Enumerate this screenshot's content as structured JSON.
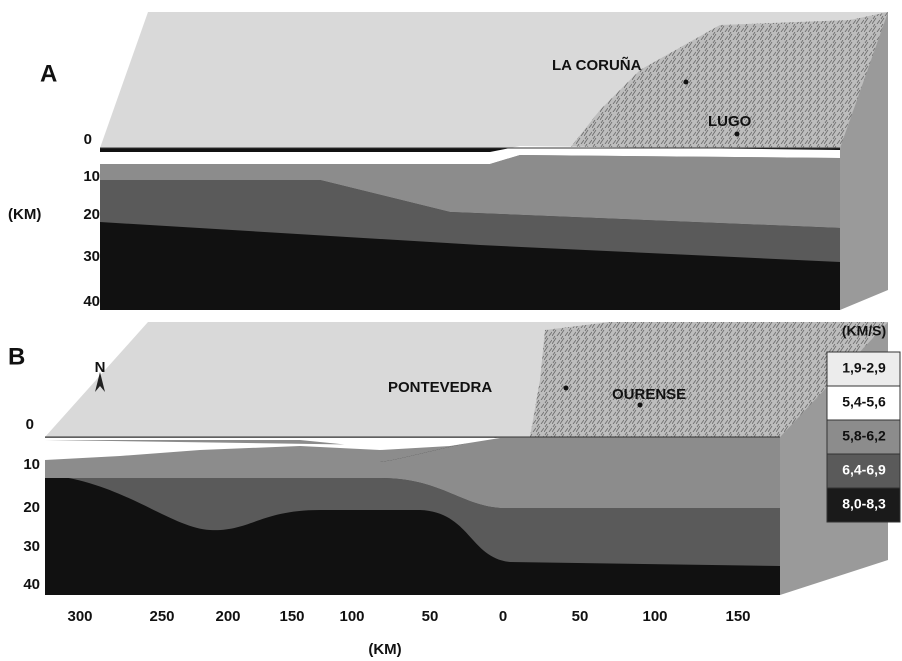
{
  "panels": [
    {
      "label": "A",
      "places": [
        "LA CORUÑA",
        "LUGO"
      ],
      "depth_ticks": [
        "0",
        "10",
        "20",
        "30",
        "40"
      ],
      "depth_unit": "(KM)"
    },
    {
      "label": "B",
      "places": [
        "PONTEVEDRA",
        "OURENSE"
      ],
      "north": "N",
      "depth_ticks": [
        "0",
        "10",
        "20",
        "30",
        "40"
      ]
    }
  ],
  "distance_ticks": [
    "300",
    "250",
    "200",
    "150",
    "100",
    "50",
    "0",
    "50",
    "100",
    "150"
  ],
  "distance_unit": "(KM)",
  "legend": {
    "title": "(KM/S)",
    "entries": [
      "1,9-2,9",
      "5,4-5,6",
      "5,8-6,2",
      "6,4-6,9",
      "8,0-8,3"
    ]
  }
}
